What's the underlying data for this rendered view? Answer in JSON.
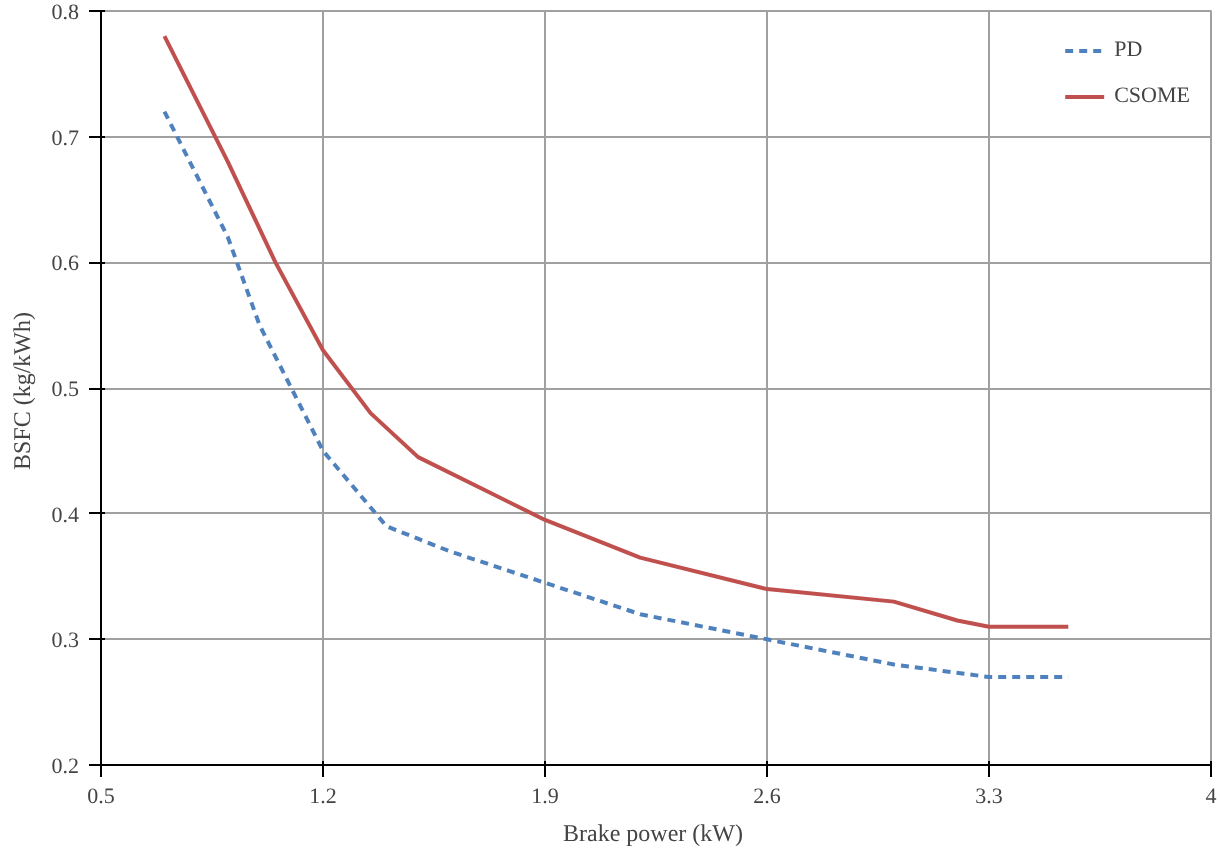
{
  "chart_data": {
    "type": "line",
    "xlabel": "Brake power  (kW)",
    "ylabel": "BSFC  (kg/kWh)",
    "xlim": [
      0.5,
      4
    ],
    "xticks": [
      0.5,
      1.2,
      1.9,
      2.6,
      3.3,
      4
    ],
    "ylim": [
      0.2,
      0.8
    ],
    "yticks": [
      0.2,
      0.3,
      0.4,
      0.5,
      0.6,
      0.7,
      0.8
    ],
    "grid": true,
    "legend": "top right",
    "marker": "none",
    "series": [
      {
        "name": "PD",
        "color": "#4f81bd",
        "line_style": "dashed",
        "x": [
          0.7,
          0.9,
          1.0,
          1.1,
          1.2,
          1.3,
          1.4,
          1.6,
          1.9,
          2.2,
          2.6,
          3.0,
          3.3,
          3.55
        ],
        "values": [
          0.72,
          0.62,
          0.55,
          0.5,
          0.45,
          0.42,
          0.39,
          0.37,
          0.345,
          0.32,
          0.3,
          0.28,
          0.27,
          0.27
        ]
      },
      {
        "name": "CSOME",
        "color": "#c0504d",
        "line_style": "solid",
        "x": [
          0.7,
          0.9,
          1.05,
          1.2,
          1.35,
          1.5,
          1.7,
          1.9,
          2.2,
          2.6,
          3.0,
          3.2,
          3.3,
          3.55
        ],
        "values": [
          0.78,
          0.68,
          0.6,
          0.53,
          0.48,
          0.445,
          0.42,
          0.395,
          0.365,
          0.34,
          0.33,
          0.315,
          0.31,
          0.31
        ]
      }
    ]
  }
}
